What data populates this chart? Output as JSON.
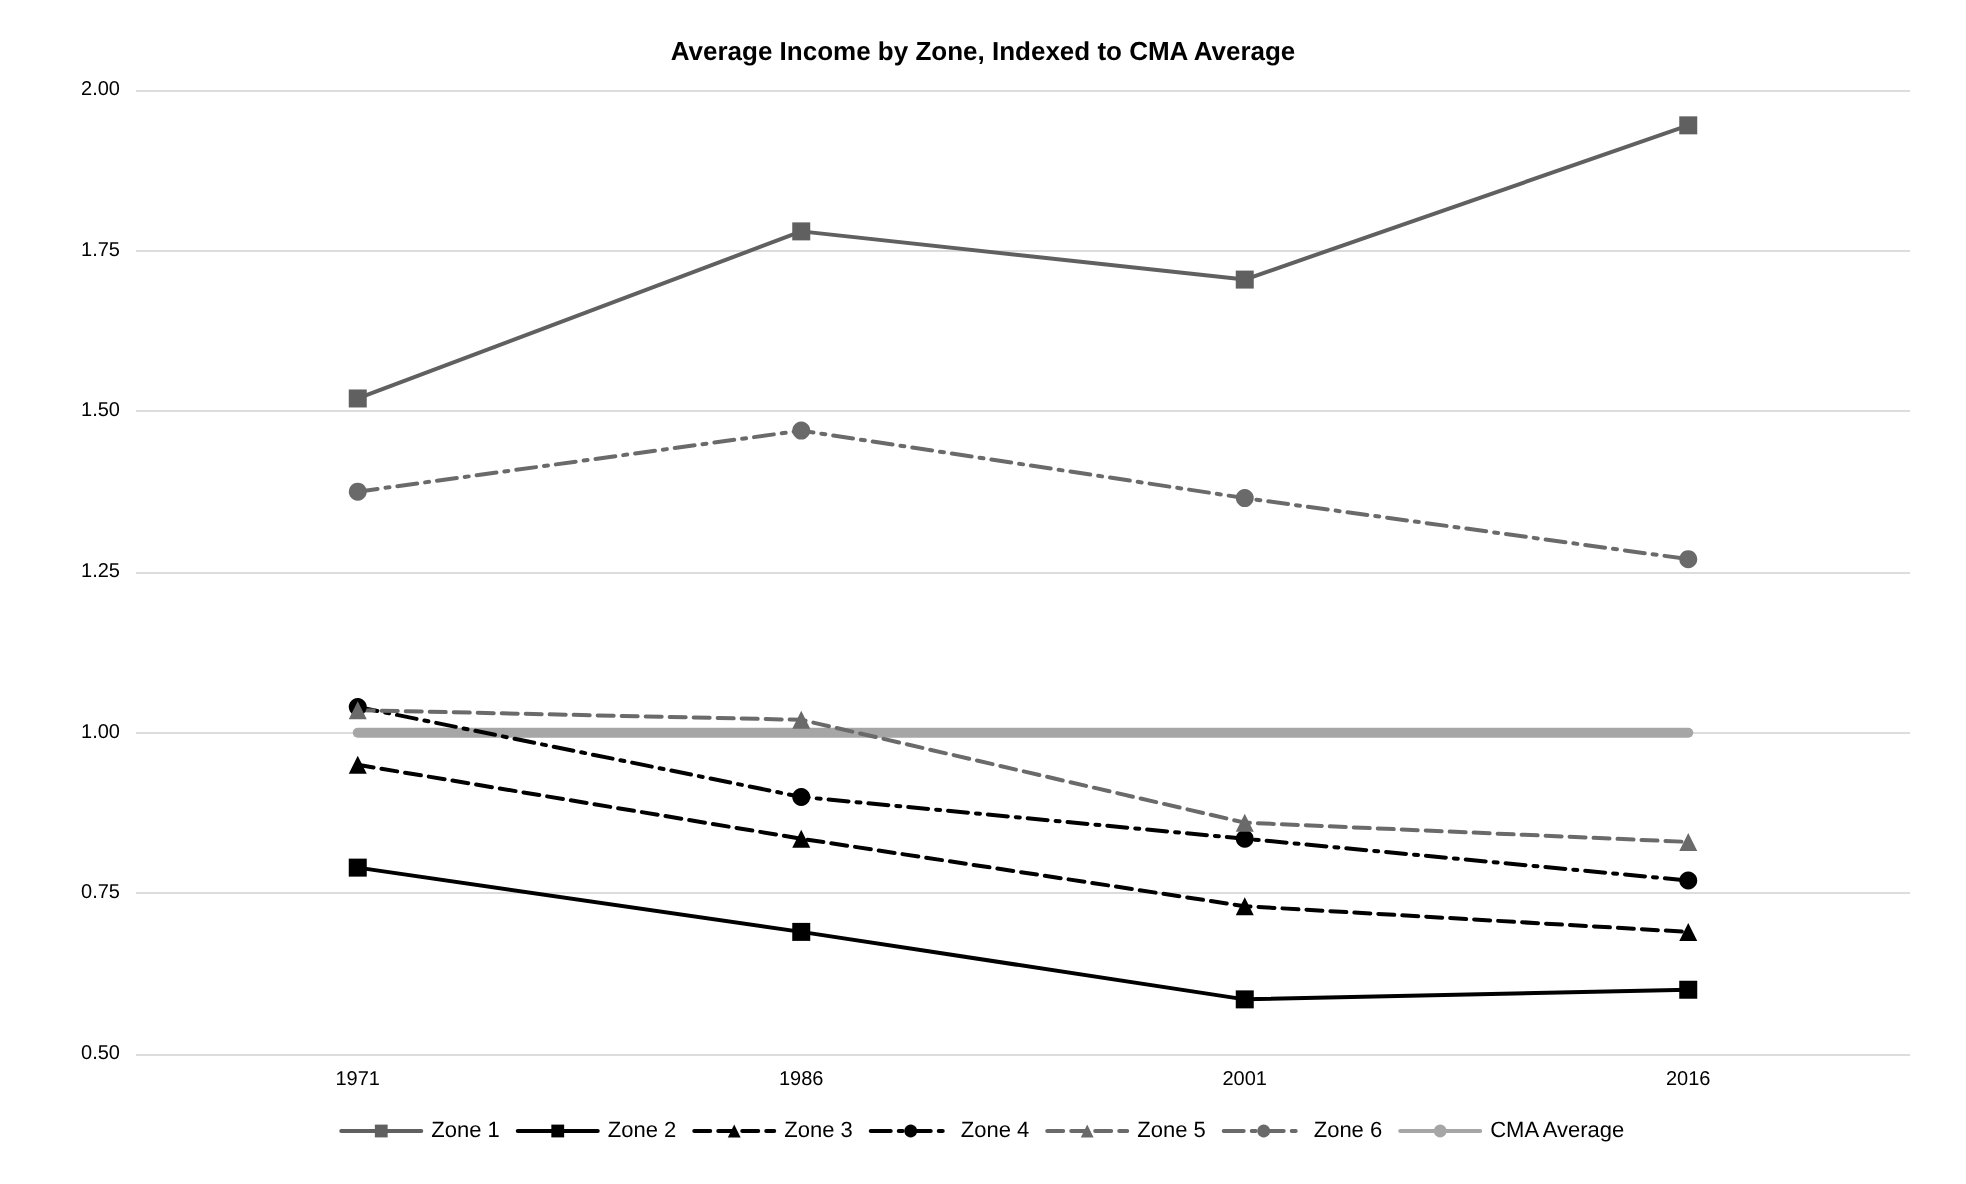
{
  "chart_data": {
    "type": "line",
    "title": "Average Income by Zone, Indexed to CMA Average",
    "categories": [
      "1971",
      "1986",
      "2001",
      "2016"
    ],
    "series": [
      {
        "name": "Zone 1",
        "color": "#606060",
        "marker": "square",
        "line_style": "solid",
        "values": [
          1.52,
          1.78,
          1.705,
          1.945
        ]
      },
      {
        "name": "Zone 2",
        "color": "#000000",
        "marker": "square",
        "line_style": "solid",
        "values": [
          0.79,
          0.69,
          0.585,
          0.6
        ]
      },
      {
        "name": "Zone 3",
        "color": "#000000",
        "marker": "triangle",
        "line_style": "dashed",
        "values": [
          0.95,
          0.835,
          0.73,
          0.69
        ]
      },
      {
        "name": "Zone 4",
        "color": "#000000",
        "marker": "circle",
        "line_style": "dashdot",
        "values": [
          1.04,
          0.9,
          0.835,
          0.77
        ]
      },
      {
        "name": "Zone 5",
        "color": "#6a6a6a",
        "marker": "triangle",
        "line_style": "dashed",
        "values": [
          1.035,
          1.02,
          0.86,
          0.83
        ]
      },
      {
        "name": "Zone 6",
        "color": "#6a6a6a",
        "marker": "circle",
        "line_style": "dashdot",
        "values": [
          1.375,
          1.47,
          1.365,
          1.27
        ]
      },
      {
        "name": "CMA Average",
        "color": "#a6a6a6",
        "marker": "none",
        "line_style": "solid",
        "values": [
          1,
          1,
          1,
          1
        ]
      }
    ],
    "ylim": [
      0.5,
      2
    ],
    "yticks": [
      {
        "value": 0.5,
        "label": "0.50"
      },
      {
        "value": 0.75,
        "label": "0.75"
      },
      {
        "value": 1,
        "label": "1.00"
      },
      {
        "value": 1.25,
        "label": "1.25"
      },
      {
        "value": 1.5,
        "label": "1.50"
      },
      {
        "value": 1.75,
        "label": "1.75"
      },
      {
        "value": 2,
        "label": "2.00"
      }
    ],
    "grid": "y",
    "legend": "bottom"
  }
}
